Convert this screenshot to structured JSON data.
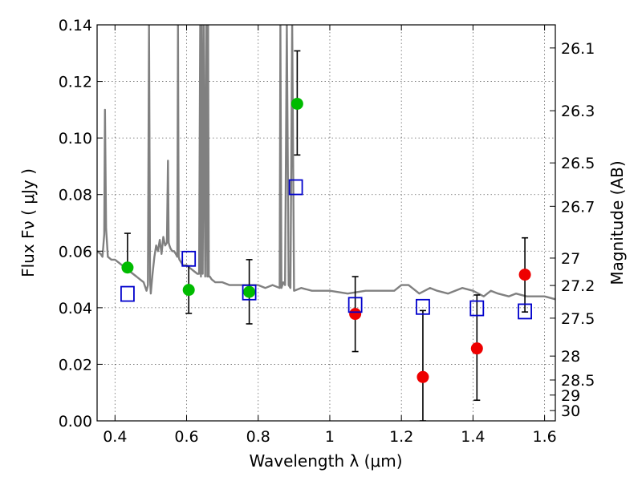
{
  "chart_data": {
    "type": "scatter",
    "title": "",
    "xlabel": "Wavelength  λ (μm)",
    "ylabel": "Flux  Fν  ( μJy )",
    "ylabel_right": "Magnitude (AB)",
    "xlim": [
      0.35,
      1.63
    ],
    "ylim": [
      0,
      0.14
    ],
    "grid": true,
    "x_ticks": [
      0.4,
      0.6,
      0.8,
      1.0,
      1.2,
      1.4,
      1.6
    ],
    "x_tick_labels": [
      "0.4",
      "0.6",
      "0.8",
      "1",
      "1.2",
      "1.4",
      "1.6"
    ],
    "y_ticks": [
      0.0,
      0.02,
      0.04,
      0.06,
      0.08,
      0.1,
      0.12,
      0.14
    ],
    "y_tick_labels": [
      "0.00",
      "0.02",
      "0.04",
      "0.06",
      "0.08",
      "0.10",
      "0.12",
      "0.14"
    ],
    "right_ticks": [
      {
        "mag": 26.1,
        "label": "26.1"
      },
      {
        "mag": 26.3,
        "label": "26.3"
      },
      {
        "mag": 26.5,
        "label": "26.5"
      },
      {
        "mag": 26.7,
        "label": "26.7"
      },
      {
        "mag": 27.0,
        "label": "27"
      },
      {
        "mag": 27.2,
        "label": "27.2"
      },
      {
        "mag": 27.5,
        "label": "27.5"
      },
      {
        "mag": 28.0,
        "label": "28"
      },
      {
        "mag": 28.5,
        "label": "28.5"
      },
      {
        "mag": 29.0,
        "label": "29"
      },
      {
        "mag": 30.0,
        "label": "30"
      }
    ],
    "colors": {
      "green": "#00bb00",
      "red": "#ee0000",
      "model": "#0000cc",
      "sed": "#808080",
      "errorbar": "#000000"
    },
    "series": [
      {
        "marker": "green-circle",
        "x": [
          0.435,
          0.606,
          0.775,
          0.909
        ],
        "y": [
          0.0542,
          0.0463,
          0.0456,
          0.1121
        ],
        "yerr_low": [
          0.0542,
          0.038,
          0.0343,
          0.094
        ],
        "yerr_high": [
          0.0663,
          0.0548,
          0.057,
          0.1308
        ]
      },
      {
        "marker": "red-circle",
        "x": [
          1.071,
          1.26,
          1.411,
          1.545
        ],
        "y": [
          0.0378,
          0.0155,
          0.0256,
          0.0517
        ],
        "yerr_low": [
          0.0245,
          0.0,
          0.0073,
          0.0385
        ],
        "yerr_high": [
          0.051,
          0.039,
          0.0445,
          0.0647
        ]
      },
      {
        "marker": "blue-open-square",
        "x": [
          0.435,
          0.606,
          0.775,
          0.905,
          1.071,
          1.26,
          1.411,
          1.545
        ],
        "y": [
          0.0449,
          0.0573,
          0.0454,
          0.0826,
          0.041,
          0.0403,
          0.0398,
          0.0387
        ]
      }
    ],
    "sed_line": {
      "x": [
        0.35,
        0.36,
        0.365,
        0.37,
        0.372,
        0.375,
        0.38,
        0.39,
        0.4,
        0.41,
        0.42,
        0.43,
        0.44,
        0.45,
        0.46,
        0.47,
        0.48,
        0.488,
        0.492,
        0.495,
        0.498,
        0.5,
        0.502,
        0.505,
        0.51,
        0.515,
        0.52,
        0.525,
        0.53,
        0.535,
        0.54,
        0.545,
        0.548,
        0.55,
        0.552,
        0.555,
        0.56,
        0.565,
        0.57,
        0.574,
        0.576,
        0.578,
        0.58,
        0.585,
        0.59,
        0.6,
        0.61,
        0.62,
        0.63,
        0.635,
        0.638,
        0.64,
        0.642,
        0.645,
        0.648,
        0.652,
        0.655,
        0.658,
        0.66,
        0.662,
        0.665,
        0.67,
        0.68,
        0.7,
        0.72,
        0.74,
        0.76,
        0.78,
        0.8,
        0.82,
        0.84,
        0.86,
        0.862,
        0.865,
        0.87,
        0.875,
        0.88,
        0.885,
        0.89,
        0.895,
        0.9,
        0.92,
        0.95,
        1.0,
        1.05,
        1.1,
        1.15,
        1.18,
        1.2,
        1.22,
        1.25,
        1.28,
        1.3,
        1.33,
        1.35,
        1.37,
        1.4,
        1.43,
        1.45,
        1.47,
        1.5,
        1.52,
        1.55,
        1.58,
        1.6,
        1.63
      ],
      "y": [
        0.06,
        0.059,
        0.058,
        0.066,
        0.11,
        0.068,
        0.058,
        0.057,
        0.057,
        0.056,
        0.055,
        0.054,
        0.053,
        0.052,
        0.051,
        0.05,
        0.049,
        0.046,
        0.048,
        0.14,
        0.05,
        0.045,
        0.048,
        0.052,
        0.058,
        0.062,
        0.06,
        0.064,
        0.059,
        0.065,
        0.062,
        0.063,
        0.092,
        0.063,
        0.062,
        0.061,
        0.06,
        0.06,
        0.059,
        0.058,
        0.14,
        0.058,
        0.057,
        0.056,
        0.055,
        0.055,
        0.054,
        0.053,
        0.052,
        0.052,
        0.14,
        0.051,
        0.14,
        0.052,
        0.14,
        0.051,
        0.14,
        0.051,
        0.14,
        0.051,
        0.051,
        0.05,
        0.049,
        0.049,
        0.048,
        0.048,
        0.048,
        0.048,
        0.048,
        0.047,
        0.048,
        0.047,
        0.14,
        0.047,
        0.049,
        0.048,
        0.14,
        0.048,
        0.047,
        0.14,
        0.046,
        0.047,
        0.046,
        0.046,
        0.045,
        0.046,
        0.046,
        0.046,
        0.048,
        0.048,
        0.045,
        0.047,
        0.046,
        0.045,
        0.046,
        0.047,
        0.046,
        0.044,
        0.046,
        0.045,
        0.044,
        0.045,
        0.044,
        0.044,
        0.044,
        0.043
      ]
    }
  }
}
